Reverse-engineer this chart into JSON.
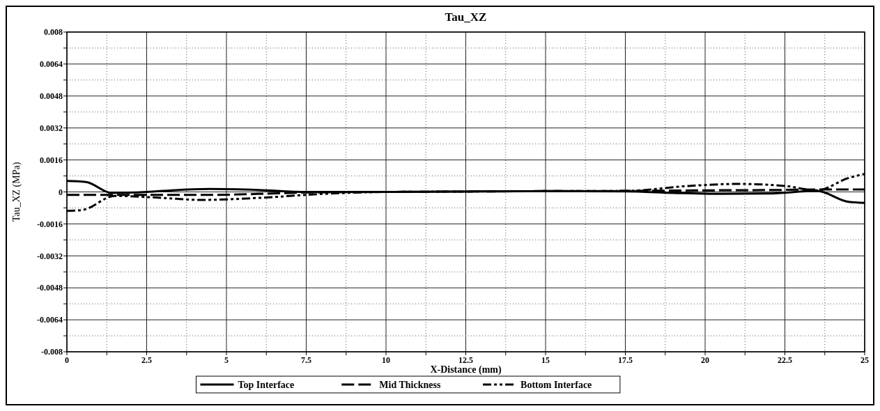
{
  "chart_data": {
    "type": "line",
    "title": "Tau_XZ",
    "xlabel": "X-Distance (mm)",
    "ylabel": "Tau_XZ (MPa)",
    "xlim": [
      0,
      25
    ],
    "ylim": [
      -0.008,
      0.008
    ],
    "xticks": [
      0,
      {
        "value": 1.25,
        "label": null
      },
      2.5,
      {
        "value": 3.75,
        "label": null
      },
      5,
      {
        "value": 6.25,
        "label": null
      },
      7.5,
      {
        "value": 8.75,
        "label": null
      },
      10,
      {
        "value": 11.25,
        "label": null
      },
      12.5,
      {
        "value": 13.75,
        "label": null
      },
      15,
      {
        "value": 16.25,
        "label": null
      },
      17.5,
      {
        "value": 18.75,
        "label": null
      },
      20,
      {
        "value": 21.25,
        "label": null
      },
      22.5,
      {
        "value": 23.75,
        "label": null
      },
      25
    ],
    "yticks": [
      -0.008,
      {
        "value": -0.0072,
        "label": null
      },
      -0.0064,
      {
        "value": -0.0056,
        "label": null
      },
      -0.0048,
      {
        "value": -0.004,
        "label": null
      },
      -0.0032,
      {
        "value": -0.0024,
        "label": null
      },
      -0.0016,
      {
        "value": -0.0008,
        "label": null
      },
      0,
      {
        "value": 0.0008,
        "label": null
      },
      0.0016,
      {
        "value": 0.0024,
        "label": null
      },
      0.0032,
      {
        "value": 0.004,
        "label": null
      },
      0.0048,
      {
        "value": 0.0056,
        "label": null
      },
      0.0064,
      {
        "value": 0.0072,
        "label": null
      },
      0.008
    ],
    "grid": true,
    "legend": "bottom",
    "series": [
      {
        "name": "Top Interface",
        "color": "#000000",
        "line_style": "solid",
        "x": [
          0,
          0.6,
          1.4,
          2.5,
          3.5,
          4.5,
          6,
          7.5,
          10,
          12.5,
          15,
          17.5,
          19,
          20.5,
          22,
          23.5,
          24.5,
          25
        ],
        "values": [
          0.00055,
          0.0005,
          -5e-05,
          0,
          0.0001,
          0.00015,
          0.0001,
          0,
          0,
          2e-05,
          4e-05,
          3e-05,
          -5e-05,
          -0.0001,
          -8e-05,
          5e-05,
          -0.0005,
          -0.00055
        ]
      },
      {
        "name": "Mid Thickness",
        "color": "#000000",
        "line_style": "dashed",
        "x": [
          0,
          1.4,
          2.5,
          4.5,
          6,
          7.5,
          10,
          12.5,
          15,
          17.5,
          20,
          22.5,
          23.5,
          24,
          25
        ],
        "values": [
          -0.00015,
          -0.00015,
          -0.00015,
          -0.00015,
          -0.0001,
          -3e-05,
          0,
          2e-05,
          4e-05,
          5e-05,
          8e-05,
          0.0001,
          0.00012,
          0.00012,
          0.00012
        ]
      },
      {
        "name": "Bottom Interface",
        "color": "#000000",
        "line_style": "dashdot",
        "x": [
          0,
          0.5,
          1.5,
          3,
          4.2,
          6,
          8,
          10,
          12.5,
          15,
          17.5,
          19.5,
          21,
          22.5,
          23.5,
          24.5,
          25
        ],
        "values": [
          -0.00095,
          -0.0009,
          -0.0002,
          -0.0003,
          -0.0004,
          -0.0003,
          -0.0001,
          0,
          2e-05,
          4e-05,
          5e-05,
          0.0003,
          0.0004,
          0.0003,
          8e-05,
          0.0007,
          0.0009
        ]
      }
    ]
  }
}
